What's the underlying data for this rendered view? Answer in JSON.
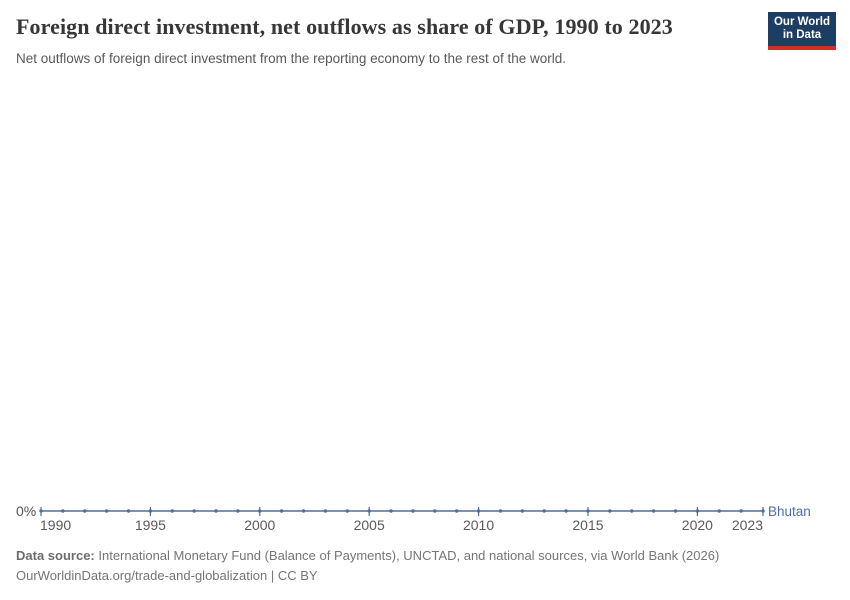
{
  "header": {
    "title": "Foreign direct investment, net outflows as share of GDP, 1990 to 2023",
    "subtitle": "Net outflows of foreign direct investment from the reporting economy to the rest of the world."
  },
  "logo": {
    "line1": "Our World",
    "line2": "in Data",
    "bg_color": "#1d3d63",
    "bar_color": "#d42b2f"
  },
  "chart_data": {
    "type": "line",
    "title": "Foreign direct investment, net outflows as share of GDP, 1990 to 2023",
    "xlabel": "",
    "ylabel": "",
    "unit": "% of GDP",
    "grid": false,
    "legend_position": "end-of-line",
    "x_range": [
      1990,
      2023
    ],
    "x_ticks": [
      "1990",
      "1995",
      "2000",
      "2005",
      "2010",
      "2015",
      "2020",
      "2023"
    ],
    "y_ticks": [
      "0%"
    ],
    "series": [
      {
        "name": "Bhutan",
        "color": "#4d6fa5",
        "x": [
          1990,
          1991,
          1992,
          1993,
          1994,
          1995,
          1996,
          1997,
          1998,
          1999,
          2000,
          2001,
          2002,
          2003,
          2004,
          2005,
          2006,
          2007,
          2008,
          2009,
          2010,
          2011,
          2012,
          2013,
          2014,
          2015,
          2016,
          2017,
          2018,
          2019,
          2020,
          2021,
          2022,
          2023
        ],
        "values": [
          0,
          0,
          0,
          0,
          0,
          0,
          0,
          0,
          0,
          0,
          0,
          0,
          0,
          0,
          0,
          0,
          0,
          0,
          0,
          0,
          0,
          0,
          0,
          0,
          0,
          0,
          0,
          0,
          0,
          0,
          0,
          0,
          0,
          0
        ]
      }
    ]
  },
  "footer": {
    "source_label": "Data source:",
    "source_text": " International Monetary Fund (Balance of Payments), UNCTAD, and national sources, via World Bank (2026)",
    "link_line": "OurWorldinData.org/trade-and-globalization | CC BY"
  }
}
